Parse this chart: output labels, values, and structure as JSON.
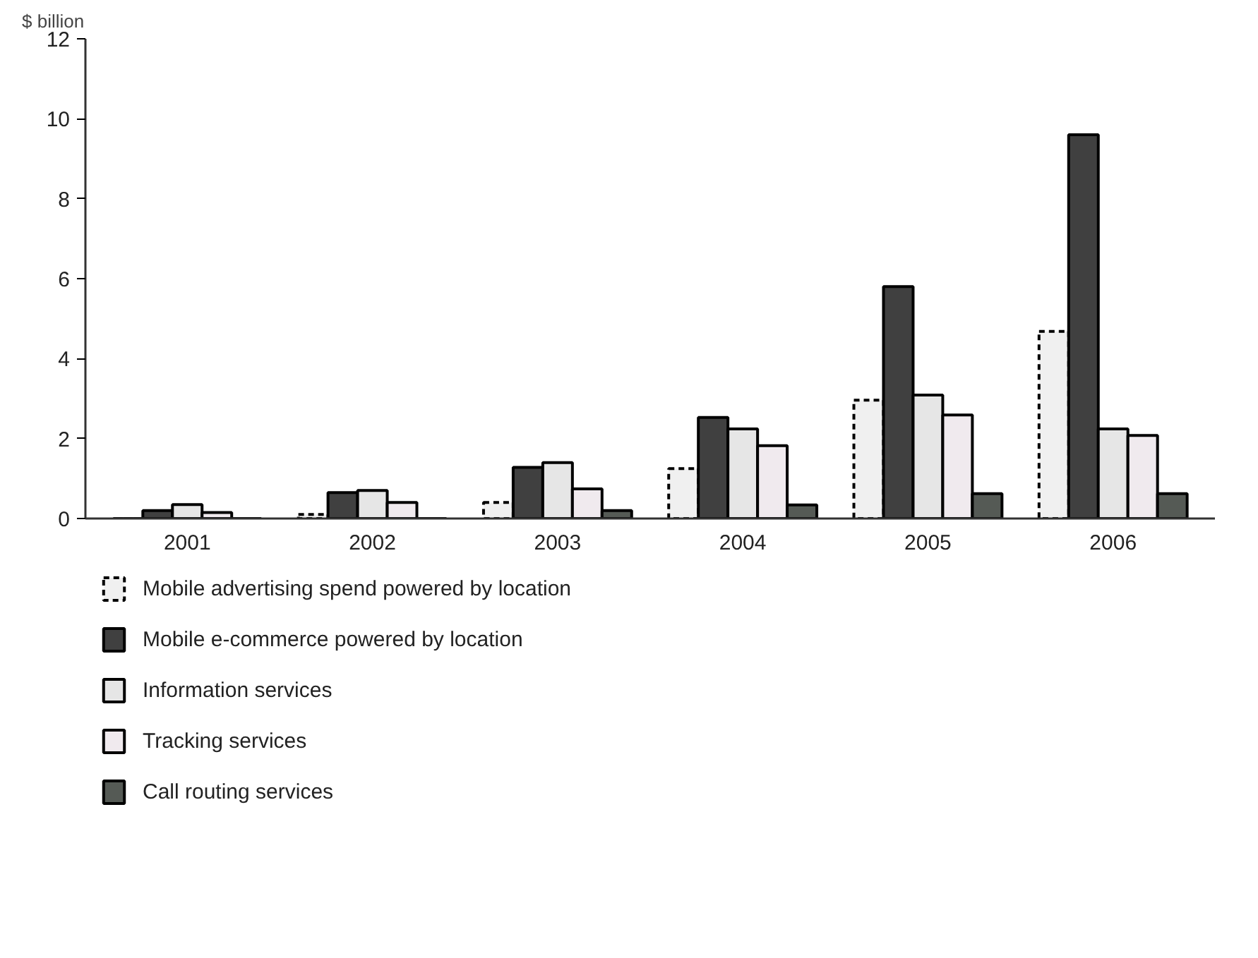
{
  "chart_data": {
    "type": "bar",
    "ylabel": "$ billion",
    "categories": [
      "2001",
      "2002",
      "2003",
      "2004",
      "2005",
      "2006"
    ],
    "series": [
      {
        "name": "Mobile advertising spend powered by location",
        "color": "#f0f0f0",
        "line_style": "dashed",
        "values": [
          null,
          0.1,
          0.4,
          1.25,
          2.96,
          4.68
        ]
      },
      {
        "name": "Mobile e-commerce powered by location",
        "color": "#404040",
        "values": [
          0.2,
          0.65,
          1.28,
          2.53,
          5.8,
          9.6
        ]
      },
      {
        "name": "Information services",
        "color": "#e6e6e6",
        "values": [
          0.35,
          0.7,
          1.4,
          2.24,
          3.09,
          2.24
        ]
      },
      {
        "name": "Tracking services",
        "color": "#f0eaee",
        "values": [
          0.15,
          0.4,
          0.74,
          1.82,
          2.59,
          2.08
        ]
      },
      {
        "name": "Call routing services",
        "color": "#555a55",
        "values": [
          null,
          null,
          0.2,
          0.34,
          0.62,
          0.62
        ]
      }
    ],
    "ylim": [
      0,
      12
    ],
    "yticks": [
      0,
      2,
      4,
      6,
      8,
      10,
      12
    ],
    "grid": false,
    "legend": "bottom left"
  }
}
